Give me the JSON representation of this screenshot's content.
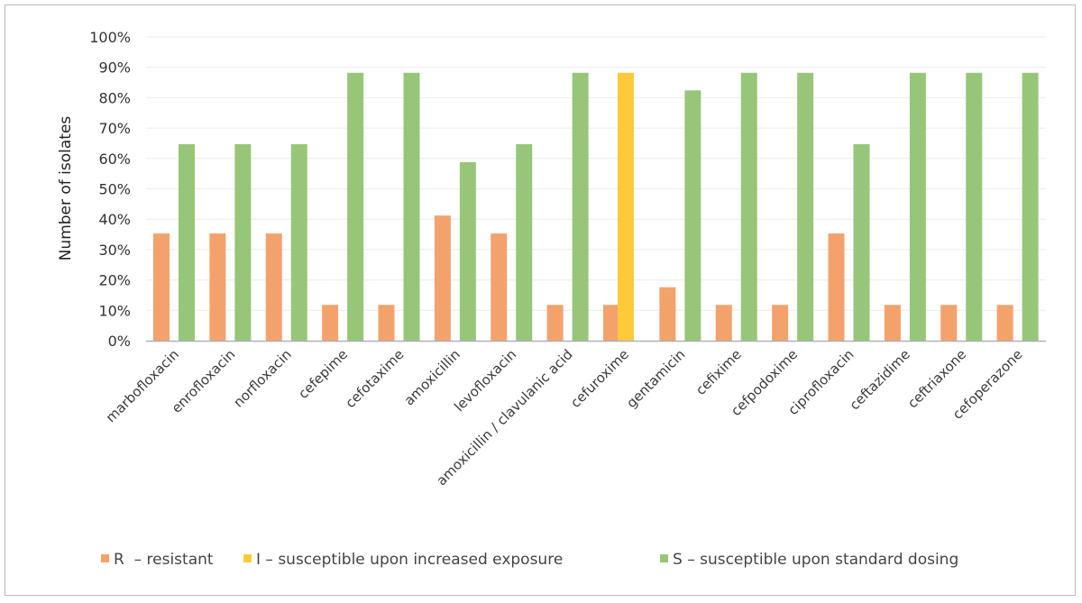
{
  "chart_data": {
    "type": "bar",
    "title": "",
    "xlabel": "",
    "ylabel": "Number of isolates",
    "ylim": [
      0,
      100
    ],
    "yticks": [
      "0%",
      "10%",
      "20%",
      "30%",
      "40%",
      "50%",
      "60%",
      "70%",
      "80%",
      "90%",
      "100%"
    ],
    "grid": true,
    "legend_position": "bottom",
    "categories": [
      "marbofloxacin",
      "enrofloxacin",
      "norfloxacin",
      "cefepime",
      "cefotaxime",
      "amoxicillin",
      "levofloxacin",
      "amoxicillin / clavulanic acid",
      "cefuroxime",
      "gentamicin",
      "cefixime",
      "cefpodoxime",
      "ciprofloxacin",
      "ceftazidime",
      "ceftriaxone",
      "cefoperazone"
    ],
    "series": [
      {
        "name": "R  – resistant",
        "color": "#F4A26B",
        "values": [
          35.3,
          35.3,
          35.3,
          11.8,
          11.8,
          41.2,
          35.3,
          11.8,
          11.8,
          17.6,
          11.8,
          11.8,
          35.3,
          11.8,
          11.8,
          11.8
        ]
      },
      {
        "name": "I – susceptible upon increased exposure",
        "color": "#FFCA3A",
        "values": [
          0,
          0,
          0,
          0,
          0,
          0,
          0,
          0,
          88.2,
          0,
          0,
          0,
          0,
          0,
          0,
          0
        ]
      },
      {
        "name": "S – susceptible upon standard dosing",
        "color": "#97C678",
        "values": [
          64.7,
          64.7,
          64.7,
          88.2,
          88.2,
          58.8,
          64.7,
          88.2,
          0,
          82.4,
          88.2,
          88.2,
          64.7,
          88.2,
          88.2,
          88.2
        ]
      }
    ]
  }
}
